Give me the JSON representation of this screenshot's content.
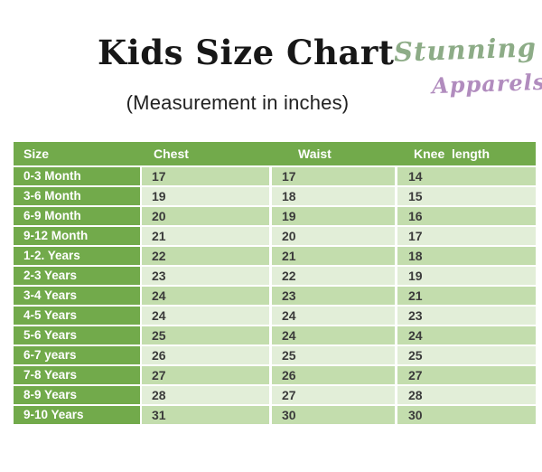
{
  "header": {
    "title": "Kids Size Chart",
    "subtitle": "(Measurement in inches)",
    "brand": {
      "name": "Stunning",
      "tagline": "Apparels"
    }
  },
  "colors": {
    "table_green": "#72aa4b",
    "row_dark": "#c3ddad",
    "row_light": "#e2eed8",
    "brand_green": "#8dac87",
    "brand_purple": "#b18cbe",
    "data_text": "#3b3b3b"
  },
  "table": {
    "columns": [
      "Size",
      "Chest",
      "Waist",
      "Knee  length"
    ],
    "rows": [
      {
        "size": "0-3 Month",
        "chest": "17",
        "waist": "17",
        "knee": "14"
      },
      {
        "size": "3-6 Month",
        "chest": "19",
        "waist": "18",
        "knee": "15"
      },
      {
        "size": "6-9 Month",
        "chest": "20",
        "waist": "19",
        "knee": "16"
      },
      {
        "size": "9-12 Month",
        "chest": "21",
        "waist": "20",
        "knee": "17"
      },
      {
        "size": "1-2. Years",
        "chest": "22",
        "waist": "21",
        "knee": "18"
      },
      {
        "size": "2-3 Years",
        "chest": "23",
        "waist": "22",
        "knee": "19"
      },
      {
        "size": "3-4 Years",
        "chest": "24",
        "waist": "23",
        "knee": "21"
      },
      {
        "size": "4-5 Years",
        "chest": "24",
        "waist": "24",
        "knee": "23"
      },
      {
        "size": "5-6 Years",
        "chest": "25",
        "waist": "24",
        "knee": "24"
      },
      {
        "size": "6-7 years",
        "chest": "26",
        "waist": "25",
        "knee": "25"
      },
      {
        "size": "7-8 Years",
        "chest": "27",
        "waist": "26",
        "knee": "27"
      },
      {
        "size": "8-9 Years",
        "chest": "28",
        "waist": "27",
        "knee": "28"
      },
      {
        "size": "9-10 Years",
        "chest": "31",
        "waist": "30",
        "knee": "30"
      }
    ]
  },
  "chart_data": {
    "type": "table",
    "title": "Kids Size Chart (Measurement in inches)",
    "categories": [
      "0-3 Month",
      "3-6 Month",
      "6-9 Month",
      "9-12 Month",
      "1-2. Years",
      "2-3 Years",
      "3-4 Years",
      "4-5 Years",
      "5-6 Years",
      "6-7 years",
      "7-8 Years",
      "8-9 Years",
      "9-10 Years"
    ],
    "series": [
      {
        "name": "Chest",
        "values": [
          17,
          19,
          20,
          21,
          22,
          23,
          24,
          24,
          25,
          26,
          27,
          28,
          31
        ]
      },
      {
        "name": "Waist",
        "values": [
          17,
          18,
          19,
          20,
          21,
          22,
          23,
          24,
          24,
          25,
          26,
          27,
          30
        ]
      },
      {
        "name": "Knee length",
        "values": [
          14,
          15,
          16,
          17,
          18,
          19,
          21,
          23,
          24,
          25,
          27,
          28,
          30
        ]
      }
    ]
  }
}
